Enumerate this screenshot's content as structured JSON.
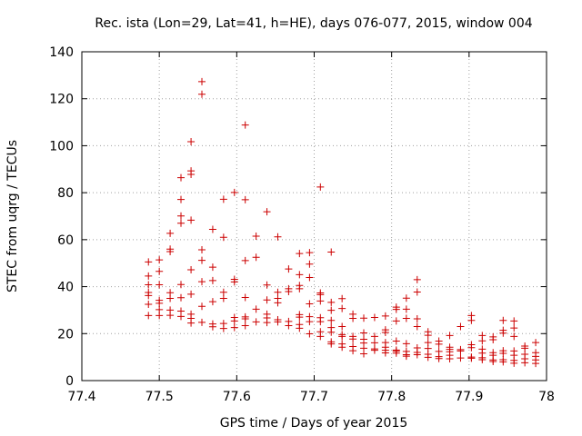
{
  "chart_data": {
    "type": "scatter",
    "title": "Rec. ista (Lon=29, Lat=41, h=HE), days 076-077, 2015, window 004",
    "xlabel": "GPS time / Days of year 2015",
    "ylabel": "STEC from uqrg / TECUs",
    "xlim": [
      77.4,
      78.0
    ],
    "ylim": [
      0,
      140
    ],
    "x_ticks": [
      "77.4",
      "77.5",
      "77.6",
      "77.7",
      "77.8",
      "77.9",
      "78"
    ],
    "x_tick_values": [
      77.4,
      77.5,
      77.6,
      77.7,
      77.8,
      77.9,
      78.0
    ],
    "y_ticks": [
      "0",
      "20",
      "40",
      "60",
      "80",
      "100",
      "120",
      "140"
    ],
    "y_tick_values": [
      0,
      20,
      40,
      60,
      80,
      100,
      120,
      140
    ],
    "grid": true,
    "legend": "none",
    "marker": "+",
    "color": "#cc0000",
    "series": [
      {
        "points": [
          [
            77.486,
            50.5
          ],
          [
            77.486,
            44.5
          ],
          [
            77.486,
            40.8
          ],
          [
            77.486,
            37.5
          ],
          [
            77.486,
            36.2
          ],
          [
            77.486,
            32.5
          ],
          [
            77.486,
            27.7
          ],
          [
            77.5,
            51.4
          ],
          [
            77.5,
            46.5
          ],
          [
            77.5,
            40.8
          ],
          [
            77.5,
            34.2
          ],
          [
            77.5,
            32.9
          ],
          [
            77.5,
            30.2
          ],
          [
            77.5,
            27.7
          ],
          [
            77.514,
            62.7
          ],
          [
            77.514,
            56.0
          ],
          [
            77.514,
            54.9
          ],
          [
            77.514,
            37.4
          ],
          [
            77.514,
            35.0
          ],
          [
            77.514,
            30.0
          ],
          [
            77.514,
            27.8
          ],
          [
            77.528,
            86.4
          ],
          [
            77.528,
            77.1
          ],
          [
            77.528,
            70.1
          ],
          [
            77.528,
            67.0
          ],
          [
            77.528,
            40.9
          ],
          [
            77.528,
            35.3
          ],
          [
            77.528,
            29.6
          ],
          [
            77.528,
            27.3
          ],
          [
            77.541,
            101.7
          ],
          [
            77.541,
            89.3
          ],
          [
            77.541,
            87.8
          ],
          [
            77.541,
            68.3
          ],
          [
            77.541,
            47.2
          ],
          [
            77.541,
            36.8
          ],
          [
            77.541,
            28.3
          ],
          [
            77.541,
            26.5
          ],
          [
            77.541,
            24.5
          ],
          [
            77.555,
            127.3
          ],
          [
            77.555,
            121.9
          ],
          [
            77.555,
            55.7
          ],
          [
            77.555,
            51.2
          ],
          [
            77.555,
            42.1
          ],
          [
            77.555,
            31.6
          ],
          [
            77.555,
            24.8
          ],
          [
            77.569,
            64.4
          ],
          [
            77.569,
            48.3
          ],
          [
            77.569,
            42.6
          ],
          [
            77.569,
            33.6
          ],
          [
            77.569,
            24.1
          ],
          [
            77.569,
            22.9
          ],
          [
            77.583,
            77.2
          ],
          [
            77.583,
            61.0
          ],
          [
            77.583,
            37.6
          ],
          [
            77.583,
            35.0
          ],
          [
            77.583,
            24.3
          ],
          [
            77.583,
            22.2
          ],
          [
            77.597,
            80.1
          ],
          [
            77.597,
            43.1
          ],
          [
            77.597,
            42.0
          ],
          [
            77.597,
            26.9
          ],
          [
            77.597,
            25.4
          ],
          [
            77.597,
            22.6
          ],
          [
            77.611,
            108.8
          ],
          [
            77.611,
            77.0
          ],
          [
            77.611,
            51.1
          ],
          [
            77.611,
            35.4
          ],
          [
            77.611,
            27.1
          ],
          [
            77.611,
            26.3
          ],
          [
            77.611,
            23.4
          ],
          [
            77.625,
            61.5
          ],
          [
            77.625,
            52.5
          ],
          [
            77.625,
            30.4
          ],
          [
            77.625,
            25.0
          ],
          [
            77.639,
            71.9
          ],
          [
            77.639,
            40.7
          ],
          [
            77.639,
            34.3
          ],
          [
            77.639,
            28.3
          ],
          [
            77.639,
            26.7
          ],
          [
            77.639,
            24.7
          ],
          [
            77.653,
            61.2
          ],
          [
            77.653,
            37.6
          ],
          [
            77.653,
            35.0
          ],
          [
            77.653,
            33.1
          ],
          [
            77.653,
            25.9
          ],
          [
            77.653,
            25.0
          ],
          [
            77.667,
            47.5
          ],
          [
            77.667,
            39.1
          ],
          [
            77.667,
            37.9
          ],
          [
            77.667,
            25.2
          ],
          [
            77.667,
            23.4
          ],
          [
            77.681,
            54.1
          ],
          [
            77.681,
            45.1
          ],
          [
            77.681,
            40.5
          ],
          [
            77.681,
            39.1
          ],
          [
            77.681,
            28.1
          ],
          [
            77.681,
            27.0
          ],
          [
            77.681,
            23.9
          ],
          [
            77.681,
            22.3
          ],
          [
            77.694,
            54.5
          ],
          [
            77.694,
            49.6
          ],
          [
            77.694,
            43.9
          ],
          [
            77.694,
            32.7
          ],
          [
            77.694,
            27.2
          ],
          [
            77.694,
            25.1
          ],
          [
            77.694,
            19.9
          ],
          [
            77.708,
            82.4
          ],
          [
            77.708,
            37.3
          ],
          [
            77.708,
            36.6
          ],
          [
            77.708,
            33.9
          ],
          [
            77.708,
            26.8
          ],
          [
            77.708,
            25.1
          ],
          [
            77.708,
            20.8
          ],
          [
            77.708,
            18.8
          ],
          [
            77.722,
            54.7
          ],
          [
            77.722,
            33.3
          ],
          [
            77.722,
            29.9
          ],
          [
            77.722,
            25.6
          ],
          [
            77.722,
            22.6
          ],
          [
            77.722,
            20.6
          ],
          [
            77.722,
            16.5
          ],
          [
            77.722,
            15.6
          ],
          [
            77.736,
            34.9
          ],
          [
            77.736,
            30.7
          ],
          [
            77.736,
            23.0
          ],
          [
            77.736,
            19.6
          ],
          [
            77.736,
            18.8
          ],
          [
            77.736,
            15.6
          ],
          [
            77.736,
            14.2
          ],
          [
            77.75,
            28.3
          ],
          [
            77.75,
            26.5
          ],
          [
            77.75,
            18.8
          ],
          [
            77.75,
            17.7
          ],
          [
            77.75,
            14.5
          ],
          [
            77.75,
            12.7
          ],
          [
            77.764,
            26.6
          ],
          [
            77.764,
            20.3
          ],
          [
            77.764,
            17.6
          ],
          [
            77.764,
            16.0
          ],
          [
            77.764,
            13.8
          ],
          [
            77.764,
            11.4
          ],
          [
            77.778,
            26.9
          ],
          [
            77.778,
            18.8
          ],
          [
            77.778,
            16.1
          ],
          [
            77.778,
            13.5
          ],
          [
            77.778,
            12.9
          ],
          [
            77.792,
            27.5
          ],
          [
            77.792,
            21.6
          ],
          [
            77.792,
            20.5
          ],
          [
            77.792,
            16.2
          ],
          [
            77.792,
            14.2
          ],
          [
            77.792,
            12.9
          ],
          [
            77.792,
            11.8
          ],
          [
            77.806,
            31.3
          ],
          [
            77.806,
            30.3
          ],
          [
            77.806,
            25.4
          ],
          [
            77.806,
            16.8
          ],
          [
            77.806,
            13.0
          ],
          [
            77.806,
            12.5
          ],
          [
            77.806,
            11.7
          ],
          [
            77.819,
            35.1
          ],
          [
            77.819,
            30.4
          ],
          [
            77.819,
            26.5
          ],
          [
            77.819,
            15.7
          ],
          [
            77.819,
            12.4
          ],
          [
            77.819,
            11.0
          ],
          [
            77.819,
            10.4
          ],
          [
            77.833,
            43.0
          ],
          [
            77.833,
            37.7
          ],
          [
            77.833,
            26.3
          ],
          [
            77.833,
            23.0
          ],
          [
            77.833,
            13.9
          ],
          [
            77.833,
            12.0
          ],
          [
            77.833,
            11.0
          ],
          [
            77.847,
            20.8
          ],
          [
            77.847,
            19.3
          ],
          [
            77.847,
            16.2
          ],
          [
            77.847,
            13.7
          ],
          [
            77.847,
            11.2
          ],
          [
            77.847,
            9.9
          ],
          [
            77.861,
            16.8
          ],
          [
            77.861,
            15.5
          ],
          [
            77.861,
            12.4
          ],
          [
            77.861,
            10.2
          ],
          [
            77.861,
            9.4
          ],
          [
            77.875,
            19.2
          ],
          [
            77.875,
            14.2
          ],
          [
            77.875,
            13.3
          ],
          [
            77.875,
            12.3
          ],
          [
            77.875,
            10.8
          ],
          [
            77.875,
            9.3
          ],
          [
            77.889,
            23.0
          ],
          [
            77.889,
            13.2
          ],
          [
            77.889,
            12.6
          ],
          [
            77.889,
            9.6
          ],
          [
            77.903,
            27.7
          ],
          [
            77.903,
            25.6
          ],
          [
            77.903,
            15.3
          ],
          [
            77.903,
            14.0
          ],
          [
            77.903,
            10.0
          ],
          [
            77.903,
            9.5
          ],
          [
            77.917,
            19.2
          ],
          [
            77.917,
            16.9
          ],
          [
            77.917,
            13.4
          ],
          [
            77.917,
            11.7
          ],
          [
            77.917,
            9.7
          ],
          [
            77.917,
            8.9
          ],
          [
            77.931,
            18.6
          ],
          [
            77.931,
            17.4
          ],
          [
            77.931,
            11.9
          ],
          [
            77.931,
            10.8
          ],
          [
            77.931,
            8.8
          ],
          [
            77.931,
            8.1
          ],
          [
            77.944,
            25.6
          ],
          [
            77.944,
            21.4
          ],
          [
            77.944,
            20.2
          ],
          [
            77.944,
            12.7
          ],
          [
            77.944,
            11.6
          ],
          [
            77.944,
            8.9
          ],
          [
            77.944,
            8.0
          ],
          [
            77.958,
            25.4
          ],
          [
            77.958,
            22.4
          ],
          [
            77.958,
            18.8
          ],
          [
            77.958,
            12.6
          ],
          [
            77.958,
            10.8
          ],
          [
            77.958,
            8.6
          ],
          [
            77.958,
            7.4
          ],
          [
            77.972,
            14.7
          ],
          [
            77.972,
            13.8
          ],
          [
            77.972,
            11.2
          ],
          [
            77.972,
            9.3
          ],
          [
            77.972,
            7.6
          ],
          [
            77.986,
            16.2
          ],
          [
            77.986,
            11.9
          ],
          [
            77.986,
            10.3
          ],
          [
            77.986,
            8.8
          ],
          [
            77.986,
            7.3
          ]
        ]
      }
    ]
  }
}
